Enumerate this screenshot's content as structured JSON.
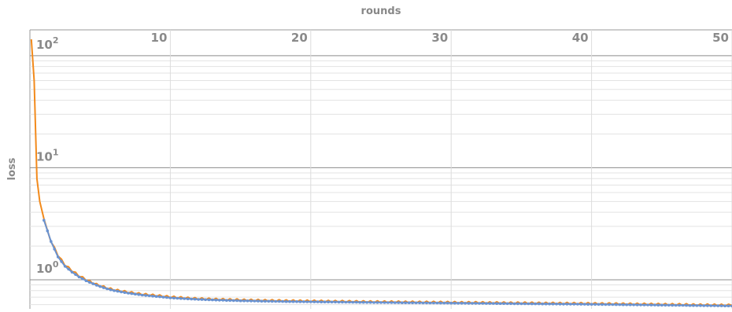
{
  "chart_data": {
    "type": "line",
    "title": "",
    "xlabel": "rounds",
    "ylabel": "loss",
    "x_axis_position": "top",
    "xlim": [
      0,
      50
    ],
    "ylim": [
      0.55,
      170
    ],
    "y_scale": "log",
    "grid": true,
    "x_ticks": [
      {
        "value": 10,
        "label": "10"
      },
      {
        "value": 20,
        "label": "20"
      },
      {
        "value": 30,
        "label": "30"
      },
      {
        "value": 40,
        "label": "40"
      },
      {
        "value": 50,
        "label": "50"
      }
    ],
    "y_ticks": [
      {
        "value": 100,
        "base": "10",
        "exp": "2"
      },
      {
        "value": 10,
        "base": "10",
        "exp": "1"
      },
      {
        "value": 1,
        "base": "10",
        "exp": "0"
      }
    ],
    "series": [
      {
        "color": "#f28a1c",
        "style": "zigzag",
        "x": [
          0.1,
          0.3,
          0.5,
          0.7,
          1.0,
          1.5,
          2.0,
          2.5,
          3.0,
          3.5,
          4.0,
          4.5,
          5.0,
          5.5,
          6.0,
          6.5,
          7.0,
          7.5,
          8.0,
          8.5,
          9.0,
          9.5,
          10.0,
          11,
          12,
          13,
          14,
          15,
          16,
          17,
          18,
          19,
          20,
          22,
          24,
          26,
          28,
          30,
          32,
          34,
          36,
          38,
          40,
          42,
          44,
          46,
          48,
          50
        ],
        "values": [
          140,
          60,
          8.0,
          5.0,
          3.5,
          2.2,
          1.65,
          1.35,
          1.2,
          1.08,
          1.0,
          0.93,
          0.88,
          0.84,
          0.81,
          0.79,
          0.77,
          0.755,
          0.74,
          0.73,
          0.72,
          0.71,
          0.7,
          0.685,
          0.675,
          0.668,
          0.662,
          0.657,
          0.653,
          0.65,
          0.647,
          0.645,
          0.643,
          0.638,
          0.634,
          0.631,
          0.628,
          0.625,
          0.622,
          0.619,
          0.616,
          0.613,
          0.61,
          0.606,
          0.602,
          0.598,
          0.594,
          0.59
        ]
      },
      {
        "color": "#6a93d1",
        "style": "smooth-markers",
        "x": [
          1.0,
          1.5,
          2.0,
          2.5,
          3.0,
          3.5,
          4.0,
          4.5,
          5.0,
          5.5,
          6.0,
          6.5,
          7.0,
          7.5,
          8.0,
          8.5,
          9.0,
          9.5,
          10.0,
          11,
          12,
          13,
          14,
          15,
          16,
          17,
          18,
          19,
          20,
          22,
          24,
          26,
          28,
          30,
          32,
          34,
          36,
          38,
          40,
          42,
          44,
          46,
          48,
          50
        ],
        "values": [
          3.4,
          2.2,
          1.6,
          1.32,
          1.17,
          1.06,
          0.98,
          0.92,
          0.87,
          0.83,
          0.8,
          0.78,
          0.76,
          0.745,
          0.73,
          0.72,
          0.71,
          0.7,
          0.69,
          0.678,
          0.668,
          0.661,
          0.655,
          0.65,
          0.646,
          0.643,
          0.64,
          0.638,
          0.636,
          0.632,
          0.628,
          0.625,
          0.622,
          0.619,
          0.616,
          0.613,
          0.61,
          0.607,
          0.604,
          0.6,
          0.596,
          0.592,
          0.588,
          0.584
        ]
      }
    ]
  }
}
